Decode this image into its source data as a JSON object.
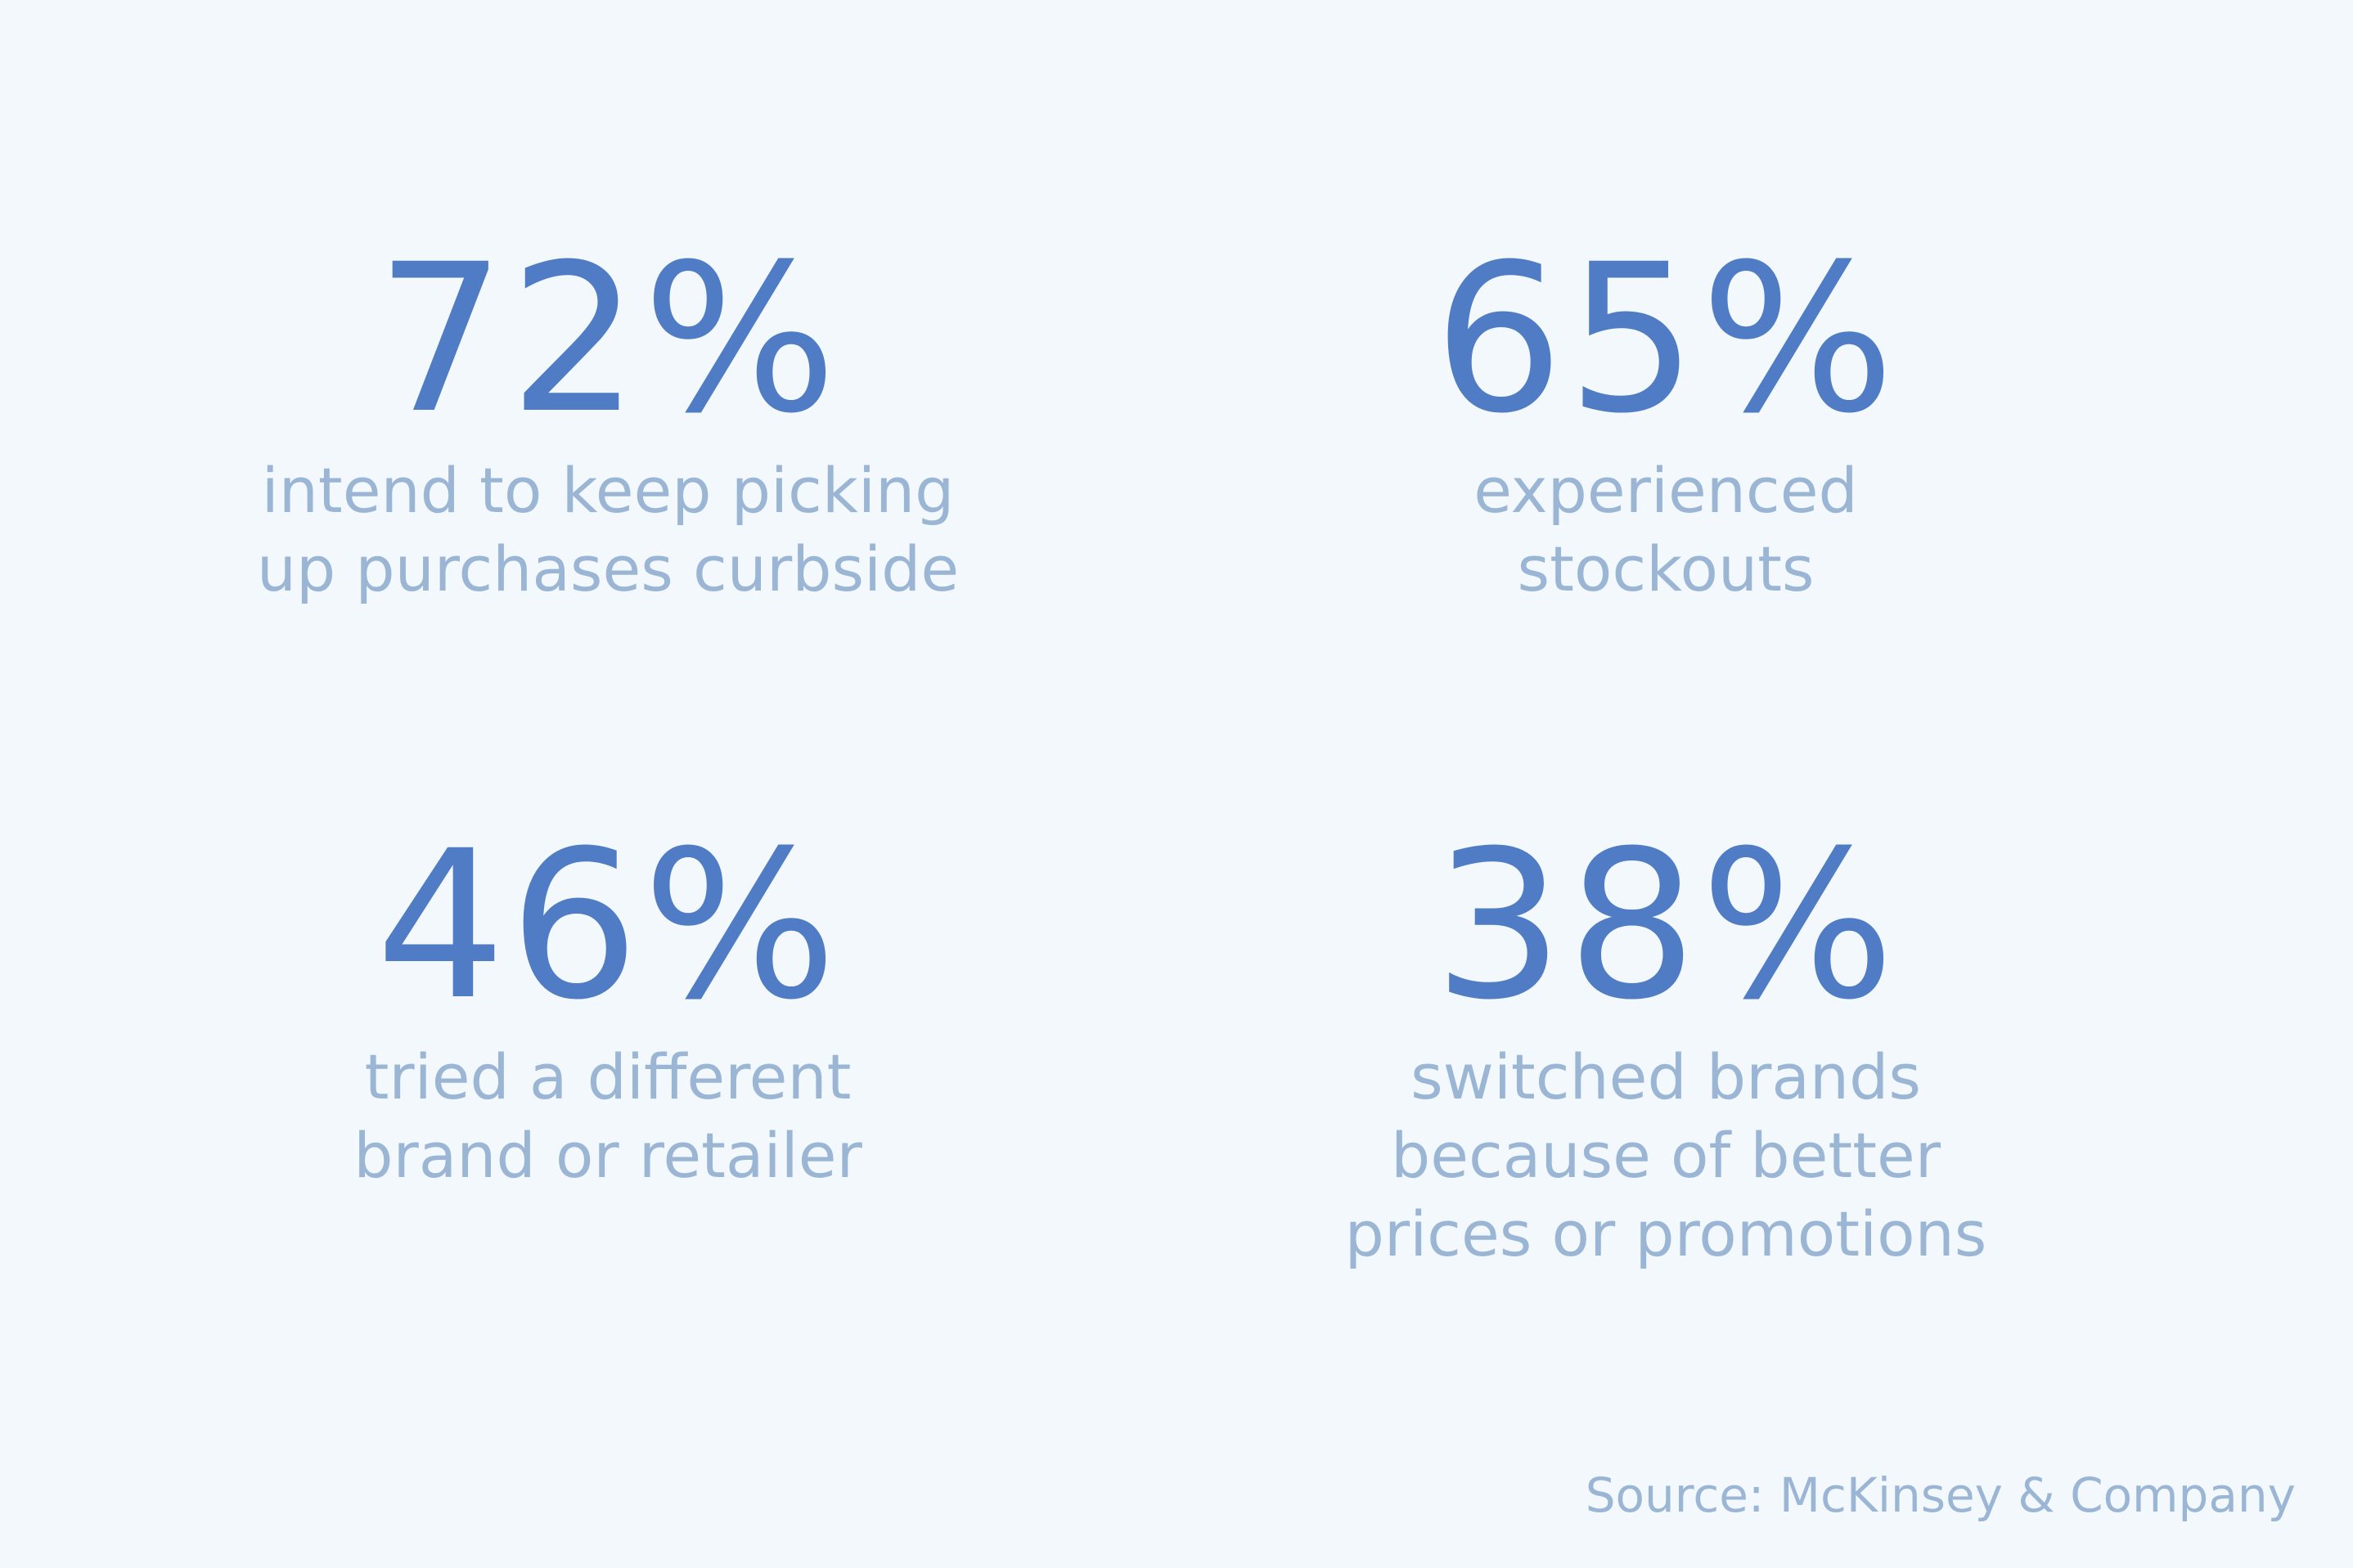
{
  "stats": [
    {
      "value": "72%",
      "lines": [
        "intend to keep picking",
        "up purchases curbside"
      ]
    },
    {
      "value": "65%",
      "lines": [
        "experienced",
        "stockouts"
      ]
    },
    {
      "value": "46%",
      "lines": [
        "tried a different",
        "brand or retailer"
      ]
    },
    {
      "value": "38%",
      "lines": [
        "switched brands",
        "because of better",
        "prices or promotions"
      ]
    }
  ],
  "source": "Source: McKinsey & Company"
}
